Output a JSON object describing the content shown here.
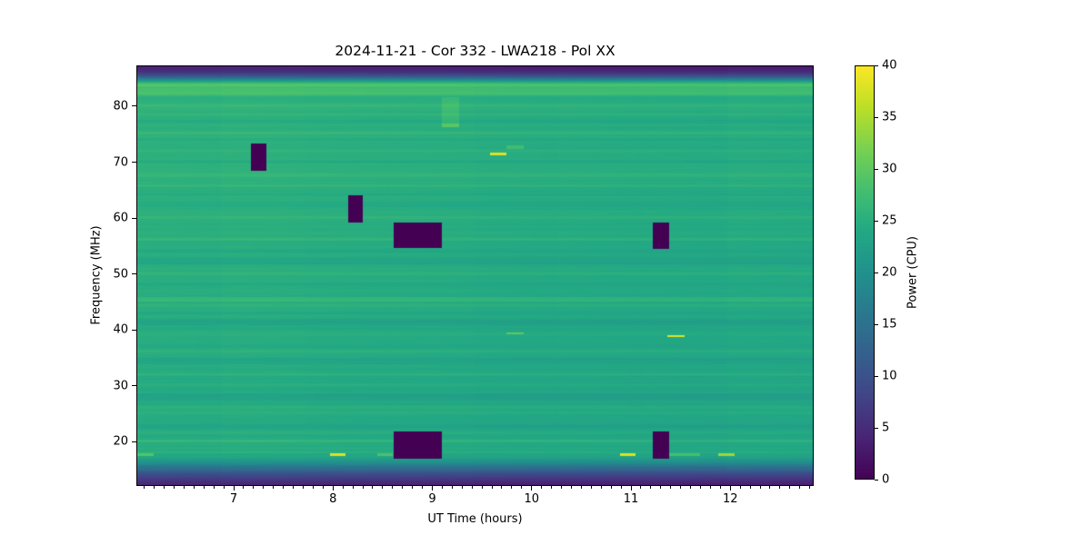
{
  "title": "2024-11-21 - Cor 332 - LWA218 - Pol XX",
  "chart_data": {
    "type": "heatmap",
    "title": "2024-11-21 - Cor 332 - LWA218 - Pol XX",
    "xlabel": "UT Time (hours)",
    "ylabel": "Frequency (MHz)",
    "colorbar_label": "Power (CPU)",
    "colormap": "viridis",
    "xlim": [
      6.02,
      12.84
    ],
    "ylim": [
      12.1,
      87.3
    ],
    "clim": [
      0,
      40
    ],
    "x_ticks": [
      7,
      8,
      9,
      10,
      11,
      12
    ],
    "x_minor_tick_interval": 0.1,
    "y_ticks": [
      20,
      30,
      40,
      50,
      60,
      70,
      80
    ],
    "colorbar_ticks": [
      0,
      5,
      10,
      15,
      20,
      25,
      30,
      35,
      40
    ],
    "viridis_stops": [
      [
        0.0,
        68,
        1,
        84
      ],
      [
        0.1,
        72,
        36,
        117
      ],
      [
        0.2,
        65,
        68,
        135
      ],
      [
        0.3,
        53,
        95,
        141
      ],
      [
        0.4,
        42,
        120,
        142
      ],
      [
        0.5,
        33,
        145,
        140
      ],
      [
        0.6,
        34,
        168,
        132
      ],
      [
        0.7,
        68,
        191,
        112
      ],
      [
        0.8,
        122,
        209,
        81
      ],
      [
        0.9,
        189,
        223,
        38
      ],
      [
        1.0,
        253,
        231,
        37
      ]
    ],
    "background_profile": [
      [
        12.1,
        3.0
      ],
      [
        12.9,
        4.8
      ],
      [
        13.7,
        7.2
      ],
      [
        14.5,
        10.5
      ],
      [
        15.3,
        14.5
      ],
      [
        16.2,
        19.0
      ],
      [
        16.7,
        21.5
      ],
      [
        17.3,
        23.2
      ],
      [
        17.8,
        23.8
      ],
      [
        18.4,
        24.2
      ],
      [
        19.3,
        24.0
      ],
      [
        20.1,
        24.6
      ],
      [
        21.0,
        24.1
      ],
      [
        22.0,
        24.0
      ],
      [
        25.0,
        24.1
      ],
      [
        30.0,
        23.9
      ],
      [
        35.0,
        24.0
      ],
      [
        40.0,
        24.2
      ],
      [
        45.0,
        24.4
      ],
      [
        50.0,
        24.5
      ],
      [
        55.0,
        24.6
      ],
      [
        60.0,
        24.7
      ],
      [
        65.0,
        24.8
      ],
      [
        70.0,
        24.9
      ],
      [
        75.0,
        25.0
      ],
      [
        78.0,
        25.1
      ],
      [
        80.5,
        25.3
      ],
      [
        81.5,
        24.6
      ],
      [
        82.0,
        26.0
      ],
      [
        82.6,
        28.3
      ],
      [
        83.3,
        27.3
      ],
      [
        83.8,
        29.3
      ],
      [
        84.1,
        26.8
      ],
      [
        84.5,
        21.5
      ],
      [
        84.9,
        16.0
      ],
      [
        85.4,
        10.5
      ],
      [
        86.0,
        6.0
      ],
      [
        86.6,
        4.0
      ],
      [
        87.3,
        2.8
      ]
    ],
    "striations": [
      [
        82.0,
        82.5,
        1.2
      ],
      [
        79.9,
        80.3,
        1.0
      ],
      [
        78.3,
        78.7,
        0.8
      ],
      [
        76.9,
        77.5,
        -0.8
      ],
      [
        75.0,
        75.5,
        1.0
      ],
      [
        73.9,
        74.3,
        -0.7
      ],
      [
        71.9,
        72.4,
        0.8
      ],
      [
        69.8,
        70.3,
        -0.6
      ],
      [
        67.4,
        68.0,
        0.9
      ],
      [
        65.5,
        66.1,
        1.3
      ],
      [
        63.9,
        64.4,
        -0.7
      ],
      [
        61.9,
        62.9,
        -0.9
      ],
      [
        59.9,
        60.4,
        0.9
      ],
      [
        57.9,
        58.4,
        -0.6
      ],
      [
        55.9,
        56.5,
        1.0
      ],
      [
        53.9,
        54.5,
        -0.7
      ],
      [
        51.8,
        53.0,
        -1.2
      ],
      [
        49.8,
        50.4,
        1.0
      ],
      [
        47.9,
        48.5,
        -0.6
      ],
      [
        45.1,
        45.9,
        1.8
      ],
      [
        44.1,
        44.6,
        0.9
      ],
      [
        42.8,
        43.3,
        -0.7
      ],
      [
        40.9,
        42.0,
        -1.2
      ],
      [
        38.9,
        39.5,
        0.6
      ],
      [
        36.9,
        37.5,
        -0.6
      ],
      [
        35.9,
        36.4,
        0.9
      ],
      [
        33.9,
        35.0,
        -0.9
      ],
      [
        31.7,
        32.3,
        1.3
      ],
      [
        29.9,
        30.5,
        0.7
      ],
      [
        27.4,
        28.6,
        -1.2
      ],
      [
        25.9,
        26.4,
        0.8
      ],
      [
        24.9,
        25.4,
        0.9
      ],
      [
        22.4,
        23.1,
        -0.9
      ],
      [
        21.3,
        21.8,
        0.7
      ],
      [
        19.9,
        20.4,
        1.4
      ],
      [
        17.9,
        18.3,
        1.2
      ]
    ],
    "x_gradient": {
      "left_delta": 0.8,
      "right_delta": -0.7
    },
    "flagged_regions": [
      {
        "t": [
          7.17,
          7.33
        ],
        "f": [
          68.5,
          73.3
        ]
      },
      {
        "t": [
          8.15,
          8.3
        ],
        "f": [
          59.2,
          64.0
        ]
      },
      {
        "t": [
          8.61,
          9.1
        ],
        "f": [
          54.6,
          59.2
        ]
      },
      {
        "t": [
          11.22,
          11.38
        ],
        "f": [
          54.5,
          59.2
        ]
      },
      {
        "t": [
          8.61,
          9.1
        ],
        "f": [
          16.9,
          21.8
        ]
      },
      {
        "t": [
          11.22,
          11.38
        ],
        "f": [
          16.9,
          21.8
        ]
      }
    ],
    "bright_features": [
      {
        "t": [
          6.03,
          6.19
        ],
        "f": [
          17.5,
          17.9
        ],
        "power": 29
      },
      {
        "t": [
          7.97,
          8.13
        ],
        "f": [
          17.5,
          17.9
        ],
        "power": 38
      },
      {
        "t": [
          8.45,
          8.6
        ],
        "f": [
          17.5,
          17.9
        ],
        "power": 28.5
      },
      {
        "t": [
          10.89,
          11.05
        ],
        "f": [
          17.5,
          17.9
        ],
        "power": 38
      },
      {
        "t": [
          11.38,
          11.7
        ],
        "f": [
          17.5,
          17.9
        ],
        "power": 28
      },
      {
        "t": [
          11.88,
          12.04
        ],
        "f": [
          17.5,
          17.9
        ],
        "power": 34
      },
      {
        "t": [
          9.58,
          9.75
        ],
        "f": [
          71.3,
          71.7
        ],
        "power": 38
      },
      {
        "t": [
          9.75,
          9.92
        ],
        "f": [
          72.4,
          73.0
        ],
        "power": 27.5
      },
      {
        "t": [
          9.75,
          9.92
        ],
        "f": [
          39.2,
          39.6
        ],
        "power": 30
      },
      {
        "t": [
          11.37,
          11.54
        ],
        "f": [
          38.7,
          39.1
        ],
        "power": 38
      }
    ],
    "vertical_band": {
      "t": [
        9.1,
        9.27
      ],
      "f": [
        76.5,
        81.6
      ],
      "delta": 2.0,
      "edge_f": [
        76.3,
        76.9
      ],
      "edge_delta": 4.5
    }
  }
}
